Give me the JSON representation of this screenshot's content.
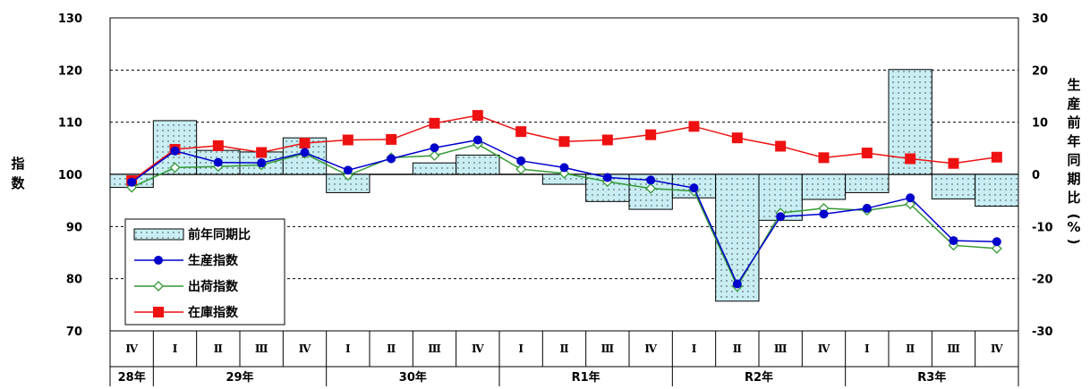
{
  "chart_data": {
    "type": "bar+line",
    "y_left_label": "指数",
    "y_right_label": "生産前年同期比(%)",
    "y_left_ticks": [
      "130",
      "120",
      "110",
      "100",
      "90",
      "80",
      "70"
    ],
    "y_right_ticks": [
      "30",
      "20",
      "10",
      "0",
      "-10",
      "-20",
      "-30"
    ],
    "ylim_left": [
      70,
      130
    ],
    "ylim_right": [
      -30,
      30
    ],
    "quarters": [
      "Ⅳ",
      "Ⅰ",
      "Ⅱ",
      "Ⅲ",
      "Ⅳ",
      "Ⅰ",
      "Ⅱ",
      "Ⅲ",
      "Ⅳ",
      "Ⅰ",
      "Ⅱ",
      "Ⅲ",
      "Ⅳ",
      "Ⅰ",
      "Ⅱ",
      "Ⅲ",
      "Ⅳ",
      "Ⅰ",
      "Ⅱ",
      "Ⅲ",
      "Ⅳ"
    ],
    "years": [
      {
        "label": "28年",
        "start": 0,
        "span": 1
      },
      {
        "label": "29年",
        "start": 1,
        "span": 4
      },
      {
        "label": "30年",
        "start": 5,
        "span": 4
      },
      {
        "label": "R1年",
        "start": 9,
        "span": 4
      },
      {
        "label": "R2年",
        "start": 13,
        "span": 4
      },
      {
        "label": "R3年",
        "start": 17,
        "span": 4
      }
    ],
    "series": [
      {
        "name": "前年同期比",
        "kind": "bar",
        "axis": "right",
        "color": "#c8eef4",
        "values": [
          -2.5,
          10.3,
          4.6,
          4.3,
          7.0,
          -3.5,
          0,
          2.2,
          3.7,
          0,
          -1.9,
          -5.2,
          -6.7,
          -4.5,
          -24.3,
          -8.8,
          -4.8,
          -3.5,
          20.1,
          -4.7,
          -6.1
        ]
      },
      {
        "name": "生産指数",
        "kind": "line",
        "axis": "left",
        "color": "#0000cc",
        "values": [
          98.5,
          104.5,
          102.3,
          102.2,
          104.2,
          100.8,
          103.0,
          105.1,
          106.6,
          102.6,
          101.3,
          99.4,
          98.9,
          97.4,
          79.0,
          91.9,
          92.4,
          93.5,
          95.5,
          87.3,
          87.1
        ]
      },
      {
        "name": "出荷指数",
        "kind": "line",
        "axis": "left",
        "color": "#339933",
        "values": [
          97.5,
          101.3,
          101.5,
          101.8,
          104.0,
          99.8,
          103.2,
          103.6,
          105.8,
          101.0,
          100.2,
          98.6,
          97.3,
          96.8,
          78.5,
          92.6,
          93.5,
          93.1,
          94.3,
          86.4,
          85.8
        ]
      },
      {
        "name": "在庫指数",
        "kind": "line",
        "axis": "left",
        "color": "#ee1111",
        "values": [
          98.8,
          104.8,
          105.5,
          104.2,
          106.0,
          106.6,
          106.7,
          109.8,
          111.3,
          108.2,
          106.3,
          106.6,
          107.6,
          109.2,
          107.0,
          105.4,
          103.2,
          104.1,
          103.0,
          102.1,
          103.3
        ]
      }
    ]
  }
}
